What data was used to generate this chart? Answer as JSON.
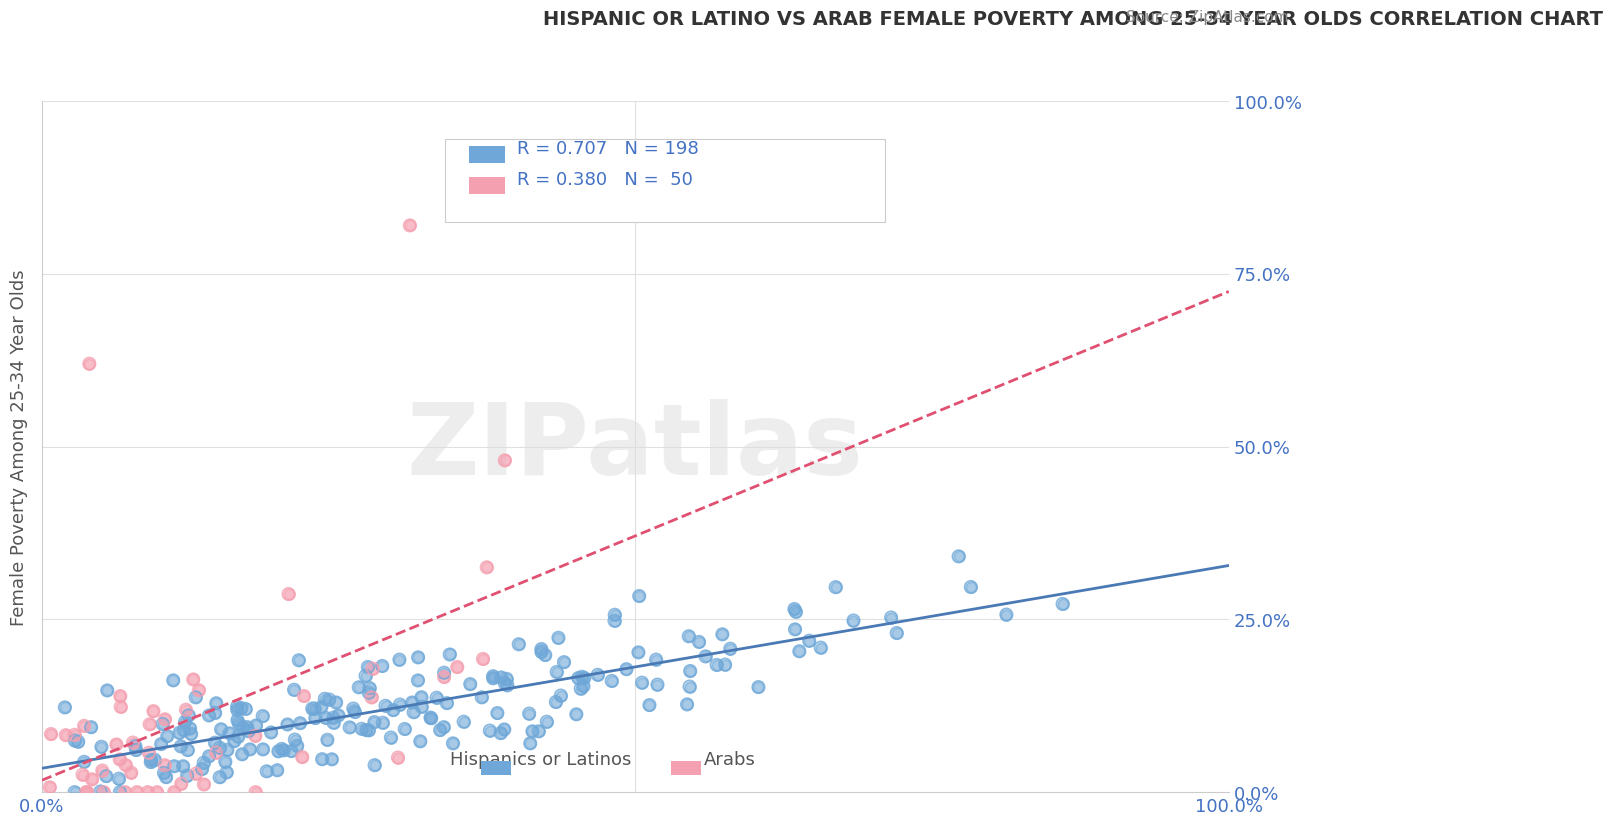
{
  "title": "HISPANIC OR LATINO VS ARAB FEMALE POVERTY AMONG 25-34 YEAR OLDS CORRELATION CHART",
  "source": "Source: ZipAtlas.com",
  "xlabel": "",
  "ylabel": "Female Poverty Among 25-34 Year Olds",
  "xlim": [
    0,
    1
  ],
  "ylim": [
    0,
    1
  ],
  "xtick_labels": [
    "0.0%",
    "100.0%"
  ],
  "ytick_labels": [
    "0.0%",
    "25.0%",
    "50.0%",
    "75.0%",
    "100.0%"
  ],
  "ytick_positions": [
    0,
    0.25,
    0.5,
    0.75,
    1.0
  ],
  "legend_entries": [
    {
      "label": "Hispanics or Latinos",
      "R": "0.707",
      "N": "198",
      "color": "#92b4e0"
    },
    {
      "label": "Arabs",
      "R": "0.380",
      "N": "50",
      "color": "#f4a0b0"
    }
  ],
  "blue_color": "#6fa8d8",
  "pink_color": "#f4a0b0",
  "regression_blue_color": "#4a7ab5",
  "regression_pink_color": "#e05070",
  "title_color": "#333333",
  "axis_label_color": "#555555",
  "tick_label_color": "#4472c4",
  "source_color": "#888888",
  "watermark_text": "ZIPatlas",
  "watermark_color": "#dddddd",
  "background_color": "#ffffff",
  "grid_color": "#e0e0e0",
  "blue_R": 0.707,
  "blue_N": 198,
  "pink_R": 0.38,
  "pink_N": 50,
  "blue_scatter_seed": 42,
  "pink_scatter_seed": 99
}
